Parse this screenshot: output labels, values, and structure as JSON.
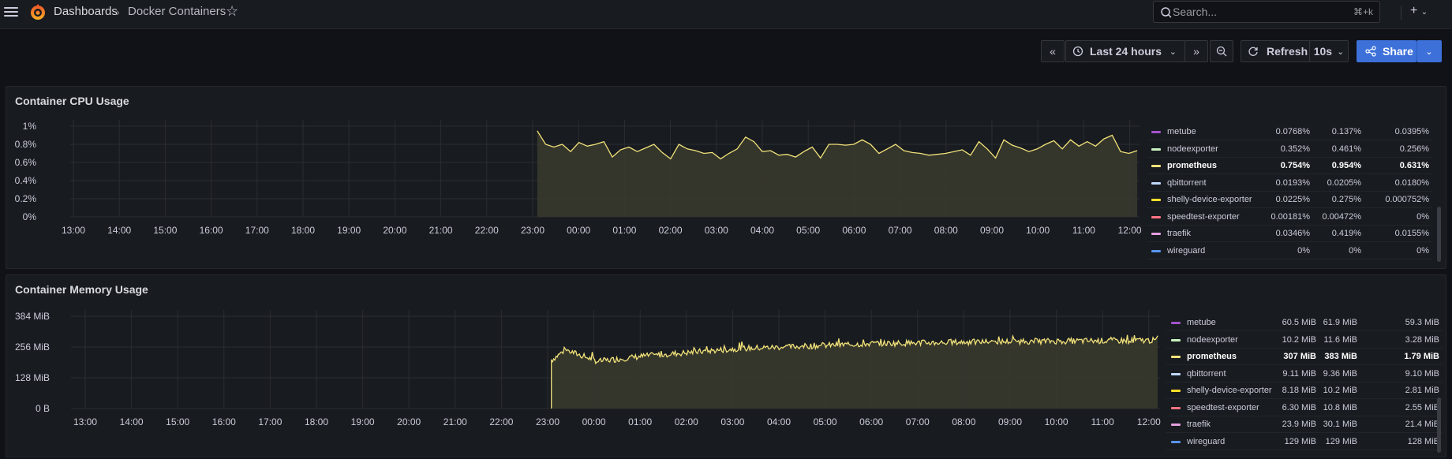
{
  "header": {
    "breadcrumb_root": "Dashboards",
    "breadcrumb_sep": "›",
    "breadcrumb_current": "Docker Containers",
    "search_placeholder": "Search...",
    "search_shortcut": "⌘+k",
    "plus_label": "+"
  },
  "toolbar": {
    "time_range": "Last 24 hours",
    "refresh_label": "Refresh",
    "refresh_interval": "10s",
    "share_label": "Share"
  },
  "colors": {
    "accent": "#3d71d9",
    "series_line": "#f2e27a",
    "fill": "#3a3a2e"
  },
  "panels": [
    {
      "title": "Container CPU Usage",
      "chart_data": {
        "type": "area",
        "ylabels": [
          "1%",
          "0.8%",
          "0.6%",
          "0.4%",
          "0.2%",
          "0%"
        ],
        "ylim": [
          0,
          1
        ],
        "xlabels": [
          "13:00",
          "14:00",
          "15:00",
          "16:00",
          "17:00",
          "18:00",
          "19:00",
          "20:00",
          "21:00",
          "22:00",
          "23:00",
          "00:00",
          "01:00",
          "02:00",
          "03:00",
          "04:00",
          "05:00",
          "06:00",
          "07:00",
          "08:00",
          "09:00",
          "10:00",
          "11:00",
          "12:00"
        ],
        "series": [
          {
            "name": "prometheus",
            "unit": "%",
            "start_hour": 23.1,
            "values": [
              0.95,
              0.8,
              0.77,
              0.8,
              0.72,
              0.82,
              0.78,
              0.8,
              0.83,
              0.66,
              0.74,
              0.77,
              0.72,
              0.76,
              0.8,
              0.71,
              0.64,
              0.8,
              0.75,
              0.73,
              0.7,
              0.71,
              0.64,
              0.7,
              0.75,
              0.88,
              0.83,
              0.72,
              0.73,
              0.68,
              0.69,
              0.66,
              0.72,
              0.77,
              0.65,
              0.8,
              0.8,
              0.79,
              0.8,
              0.85,
              0.8,
              0.7,
              0.75,
              0.8,
              0.73,
              0.71,
              0.7,
              0.68,
              0.69,
              0.7,
              0.72,
              0.74,
              0.68,
              0.83,
              0.75,
              0.65,
              0.85,
              0.79,
              0.76,
              0.72,
              0.75,
              0.8,
              0.84,
              0.75,
              0.85,
              0.78,
              0.83,
              0.78,
              0.86,
              0.9,
              0.72,
              0.7,
              0.73
            ]
          }
        ]
      },
      "legend": [
        {
          "name": "metube",
          "color": "#a352cc",
          "mean": "0.0768%",
          "max": "0.137%",
          "min": "0.0395%"
        },
        {
          "name": "nodeexporter",
          "color": "#c8f2c2",
          "mean": "0.352%",
          "max": "0.461%",
          "min": "0.256%"
        },
        {
          "name": "prometheus",
          "color": "#f2e27a",
          "mean": "0.754%",
          "max": "0.954%",
          "min": "0.631%"
        },
        {
          "name": "qbittorrent",
          "color": "#c0d8ff",
          "mean": "0.0193%",
          "max": "0.0205%",
          "min": "0.0180%"
        },
        {
          "name": "shelly-device-exporter",
          "color": "#fade2a",
          "mean": "0.0225%",
          "max": "0.275%",
          "min": "0.000752%"
        },
        {
          "name": "speedtest-exporter",
          "color": "#ff7383",
          "mean": "0.00181%",
          "max": "0.00472%",
          "min": "0%"
        },
        {
          "name": "traefik",
          "color": "#e59fe0",
          "mean": "0.0346%",
          "max": "0.419%",
          "min": "0.0155%"
        },
        {
          "name": "wireguard",
          "color": "#5794f2",
          "mean": "0%",
          "max": "0%",
          "min": "0%"
        }
      ]
    },
    {
      "title": "Container Memory Usage",
      "chart_data": {
        "type": "area",
        "ylabels": [
          "384 MiB",
          "256 MiB",
          "128 MiB",
          "0 B"
        ],
        "ylim": [
          0,
          440
        ],
        "xlabels": [
          "13:00",
          "14:00",
          "15:00",
          "16:00",
          "17:00",
          "18:00",
          "19:00",
          "20:00",
          "21:00",
          "22:00",
          "23:00",
          "00:00",
          "01:00",
          "02:00",
          "03:00",
          "04:00",
          "05:00",
          "06:00",
          "07:00",
          "08:00",
          "09:00",
          "10:00",
          "11:00",
          "12:00"
        ],
        "series": [
          {
            "name": "prometheus",
            "unit": "MiB",
            "start_hour": 23.08,
            "trend": [
              [
                0,
                230
              ],
              [
                0.3,
                280
              ],
              [
                1,
                225
              ],
              [
                2,
                250
              ],
              [
                4,
                285
              ],
              [
                7,
                310
              ],
              [
                10,
                320
              ],
              [
                13,
                325
              ]
            ],
            "jitter": 28
          }
        ]
      },
      "legend": [
        {
          "name": "metube",
          "color": "#a352cc",
          "mean": "60.5 MiB",
          "max": "61.9 MiB",
          "min": "59.3 MiB"
        },
        {
          "name": "nodeexporter",
          "color": "#c8f2c2",
          "mean": "10.2 MiB",
          "max": "11.6 MiB",
          "min": "3.28 MiB"
        },
        {
          "name": "prometheus",
          "color": "#f2e27a",
          "mean": "307 MiB",
          "max": "383 MiB",
          "min": "1.79 MiB"
        },
        {
          "name": "qbittorrent",
          "color": "#c0d8ff",
          "mean": "9.11 MiB",
          "max": "9.36 MiB",
          "min": "9.10 MiB"
        },
        {
          "name": "shelly-device-exporter",
          "color": "#fade2a",
          "mean": "8.18 MiB",
          "max": "10.2 MiB",
          "min": "2.81 MiB"
        },
        {
          "name": "speedtest-exporter",
          "color": "#ff7383",
          "mean": "6.30 MiB",
          "max": "10.8 MiB",
          "min": "2.55 MiB"
        },
        {
          "name": "traefik",
          "color": "#e59fe0",
          "mean": "23.9 MiB",
          "max": "30.1 MiB",
          "min": "21.4 MiB"
        },
        {
          "name": "wireguard",
          "color": "#5794f2",
          "mean": "129 MiB",
          "max": "129 MiB",
          "min": "128 MiB"
        }
      ]
    }
  ]
}
